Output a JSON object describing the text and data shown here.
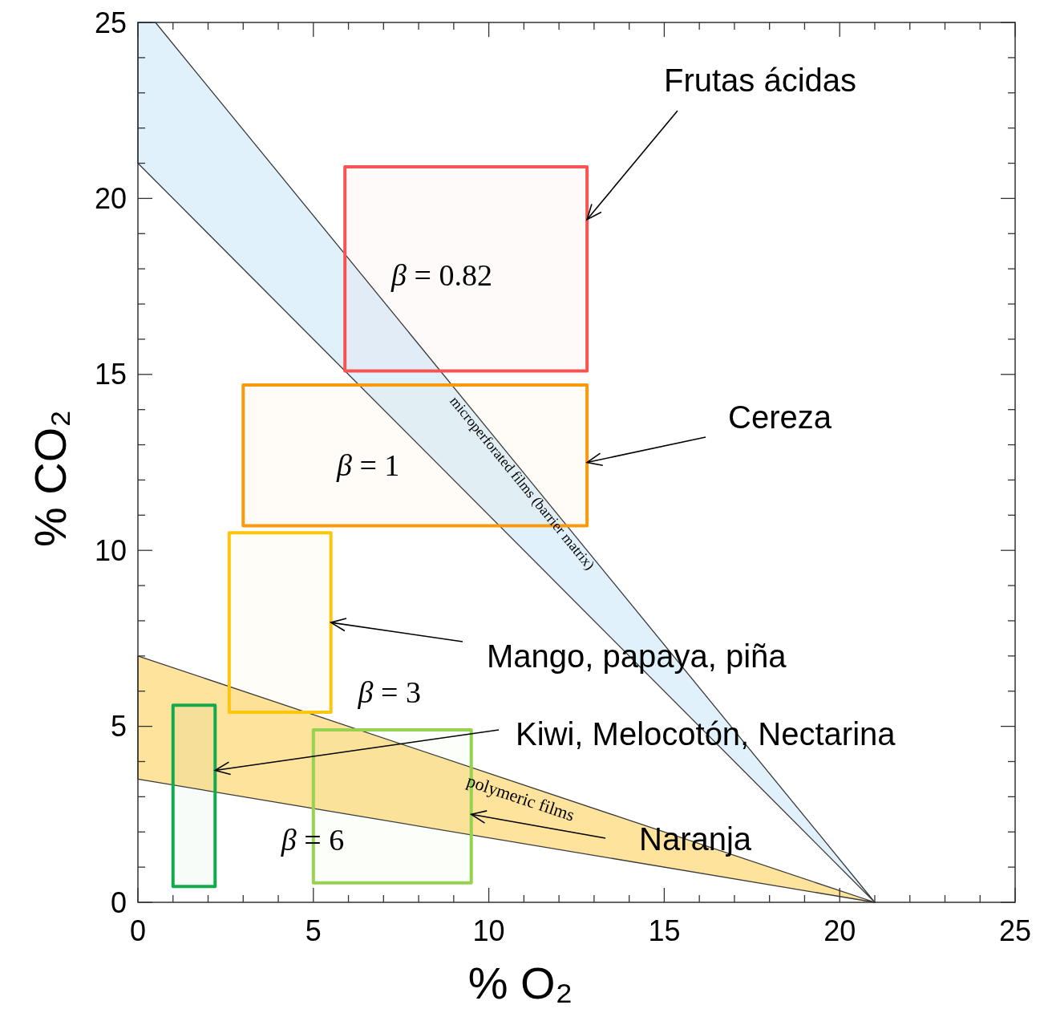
{
  "chart_data": {
    "type": "line",
    "xlabel": "% O₂",
    "ylabel": "% CO₂",
    "xlim": [
      0,
      25
    ],
    "ylim": [
      0,
      25
    ],
    "xticks": [
      0,
      {
        "value": 1,
        "label": null
      },
      {
        "value": 2,
        "label": null
      },
      {
        "value": 3,
        "label": null
      },
      {
        "value": 4,
        "label": null
      },
      5,
      {
        "value": 6,
        "label": null
      },
      {
        "value": 7,
        "label": null
      },
      {
        "value": 8,
        "label": null
      },
      {
        "value": 9,
        "label": null
      },
      10,
      {
        "value": 11,
        "label": null
      },
      {
        "value": 12,
        "label": null
      },
      {
        "value": 13,
        "label": null
      },
      {
        "value": 14,
        "label": null
      },
      15,
      {
        "value": 16,
        "label": null
      },
      {
        "value": 17,
        "label": null
      },
      {
        "value": 18,
        "label": null
      },
      {
        "value": 19,
        "label": null
      },
      20,
      {
        "value": 21,
        "label": null
      },
      {
        "value": 22,
        "label": null
      },
      {
        "value": 23,
        "label": null
      },
      {
        "value": 24,
        "label": null
      },
      25
    ],
    "yticks": [
      0,
      {
        "value": 1,
        "label": null
      },
      {
        "value": 2,
        "label": null
      },
      {
        "value": 3,
        "label": null
      },
      {
        "value": 4,
        "label": null
      },
      5,
      {
        "value": 6,
        "label": null
      },
      {
        "value": 7,
        "label": null
      },
      {
        "value": 8,
        "label": null
      },
      {
        "value": 9,
        "label": null
      },
      10,
      {
        "value": 11,
        "label": null
      },
      {
        "value": 12,
        "label": null
      },
      {
        "value": 13,
        "label": null
      },
      {
        "value": 14,
        "label": null
      },
      15,
      {
        "value": 16,
        "label": null
      },
      {
        "value": 17,
        "label": null
      },
      {
        "value": 18,
        "label": null
      },
      {
        "value": 19,
        "label": null
      },
      20,
      {
        "value": 21,
        "label": null
      },
      {
        "value": 22,
        "label": null
      },
      {
        "value": 23,
        "label": null
      },
      {
        "value": 24,
        "label": null
      },
      25
    ],
    "grid": false,
    "series": [
      {
        "type": "area",
        "color": "#e0f1fc",
        "x": [
          0,
          0.5,
          21
        ],
        "values": [
          null,
          null,
          null
        ],
        "lower": [
          21,
          20.5,
          0
        ],
        "upper": [
          25,
          25,
          0
        ]
      },
      {
        "type": "area",
        "color": "#fde39c",
        "x": [
          0,
          21
        ],
        "values": [
          null,
          null
        ],
        "lower": [
          3.5,
          0
        ],
        "upper": [
          7,
          0
        ]
      },
      {
        "color": "#f85454",
        "x": [
          5.9,
          12.8
        ],
        "values": [
          null,
          null
        ],
        "lower": [
          15.1,
          15.1
        ],
        "upper": [
          20.9,
          20.9
        ]
      },
      {
        "color": "#f99a0c",
        "x": [
          3.0,
          12.8
        ],
        "values": [
          null,
          null
        ],
        "lower": [
          10.7,
          10.7
        ],
        "upper": [
          14.7,
          14.7
        ]
      },
      {
        "color": "#fcc60c",
        "x": [
          2.6,
          5.5
        ],
        "values": [
          null,
          null
        ],
        "lower": [
          5.4,
          5.4
        ],
        "upper": [
          10.5,
          10.5
        ]
      },
      {
        "color": "#12aa4c",
        "x": [
          1.0,
          2.2
        ],
        "values": [
          null,
          null
        ],
        "lower": [
          0.45,
          0.45
        ],
        "upper": [
          5.6,
          5.6
        ]
      },
      {
        "color": "#96d250",
        "x": [
          5.0,
          9.5
        ],
        "values": [
          null,
          null
        ],
        "lower": [
          0.55,
          0.55
        ],
        "upper": [
          4.9,
          4.9
        ]
      }
    ],
    "annotations": [
      {
        "text": "Frutas ácidas",
        "x": 12.8,
        "y": 19.4
      },
      {
        "text": "Cereza",
        "x": 12.8,
        "y": 12.5
      },
      {
        "text": "Mango, papaya, piña",
        "x": 5.5,
        "y": 7.95
      },
      {
        "text": "Kiwi, Melocotón, Nectarina",
        "x": 2.2,
        "y": 3.75
      },
      {
        "text": "Naranja",
        "x": 9.5,
        "y": 2.5
      },
      {
        "text": "β = 0.82",
        "x": 6.4,
        "y": 17.8
      },
      {
        "text": "β = 1",
        "x": 8.6,
        "y": 12.4
      },
      {
        "text": "β = 3",
        "x": 6,
        "y": 5
      },
      {
        "text": "β = 6",
        "x": 4.2,
        "y": 2.8
      },
      {
        "text": "microperforated films (barrier matrix)",
        "x": 11,
        "y": 12.2
      },
      {
        "text": "polymeric films",
        "x": 11,
        "y": 3.33
      }
    ]
  }
}
